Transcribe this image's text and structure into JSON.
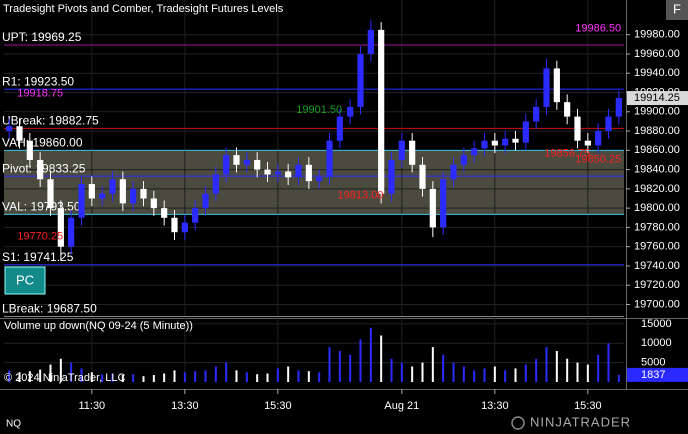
{
  "chart_data": {
    "type": "candlestick",
    "title": "Tradesight Pivots and Comber, Tradesight Futures Levels",
    "symbol": "NQ",
    "copyright": "© 2024 NinjaTrader, LLC",
    "button": "PC",
    "corner_button": "F",
    "logo": "NINJATRADER",
    "categories": [
      null,
      null,
      null,
      null,
      null,
      null,
      null,
      null,
      "11:30",
      null,
      null,
      null,
      null,
      null,
      null,
      null,
      null,
      "13:30",
      null,
      null,
      null,
      null,
      null,
      null,
      null,
      null,
      "15:30",
      null,
      null,
      null,
      null,
      null,
      null,
      null,
      null,
      null,
      null,
      null,
      "Aug 21",
      null,
      null,
      null,
      null,
      null,
      null,
      null,
      null,
      "13:30",
      null,
      null,
      null,
      null,
      null,
      null,
      null,
      null,
      "15:30",
      null,
      null,
      null
    ],
    "open": [
      19880,
      19885,
      19870,
      19850,
      19830,
      19800,
      19760,
      19790,
      19825,
      19810,
      19815,
      19830,
      19805,
      19820,
      19810,
      19800,
      19790,
      19775,
      19785,
      19800,
      19815,
      19835,
      19855,
      19845,
      19850,
      19840,
      19835,
      19838,
      19832,
      19845,
      19828,
      19832,
      19870,
      19895,
      19905,
      19960,
      19985,
      19815,
      19850,
      19870,
      19845,
      19820,
      19780,
      19830,
      19845,
      19855,
      19862,
      19870,
      19865,
      19872,
      19868,
      19890,
      19905,
      19945,
      19910,
      19895,
      19870,
      19865,
      19880,
      19895
    ],
    "high": [
      19893,
      19893,
      19878,
      19858,
      19838,
      19808,
      19798,
      19833,
      19833,
      19823,
      19838,
      19838,
      19828,
      19828,
      19818,
      19808,
      19798,
      19793,
      19808,
      19823,
      19843,
      19863,
      19863,
      19858,
      19858,
      19848,
      19846,
      19846,
      19853,
      19853,
      19840,
      19878,
      19903,
      19913,
      19968,
      19995,
      19993,
      19858,
      19878,
      19878,
      19853,
      19828,
      19838,
      19853,
      19863,
      19870,
      19878,
      19878,
      19880,
      19880,
      19898,
      19913,
      19955,
      19953,
      19918,
      19903,
      19878,
      19888,
      19903,
      19922
    ],
    "low": [
      19872,
      19862,
      19842,
      19822,
      19792,
      19745,
      19752,
      19782,
      19802,
      19802,
      19807,
      19797,
      19797,
      19802,
      19792,
      19782,
      19767,
      19767,
      19777,
      19792,
      19807,
      19827,
      19837,
      19837,
      19832,
      19827,
      19827,
      19824,
      19824,
      19820,
      19820,
      19824,
      19862,
      19887,
      19897,
      19952,
      19805,
      19807,
      19842,
      19837,
      19812,
      19770,
      19772,
      19822,
      19837,
      19847,
      19854,
      19857,
      19857,
      19860,
      19860,
      19882,
      19897,
      19902,
      19887,
      19862,
      19857,
      19857,
      19872,
      19887
    ],
    "close": [
      19885,
      19870,
      19850,
      19830,
      19800,
      19760,
      19790,
      19825,
      19810,
      19815,
      19830,
      19805,
      19820,
      19810,
      19800,
      19790,
      19775,
      19785,
      19800,
      19815,
      19835,
      19855,
      19845,
      19850,
      19840,
      19835,
      19838,
      19832,
      19845,
      19828,
      19832,
      19870,
      19895,
      19905,
      19960,
      19985,
      19815,
      19850,
      19870,
      19845,
      19820,
      19780,
      19830,
      19845,
      19855,
      19862,
      19870,
      19865,
      19872,
      19868,
      19890,
      19905,
      19945,
      19910,
      19895,
      19870,
      19865,
      19880,
      19895,
      19914.25
    ],
    "up_color": "#2b2bff",
    "down_color": "#ffffff",
    "ylim": [
      19686,
      20016
    ],
    "yticks": [
      {
        "value": 19700,
        "label": "19700.00"
      },
      {
        "value": 19720,
        "label": "19720.00"
      },
      {
        "value": 19740,
        "label": "19740.00"
      },
      {
        "value": 19760,
        "label": "19760.00"
      },
      {
        "value": 19780,
        "label": "19780.00"
      },
      {
        "value": 19800,
        "label": "19800.00"
      },
      {
        "value": 19820,
        "label": "19820.00"
      },
      {
        "value": 19840,
        "label": "19840.00"
      },
      {
        "value": 19860,
        "label": "19860.00"
      },
      {
        "value": 19880,
        "label": "19880.00"
      },
      {
        "value": 19900,
        "label": "19900.00"
      },
      {
        "value": 19920,
        "label": "19920.00"
      },
      {
        "value": 19940,
        "label": "19940.00"
      },
      {
        "value": 19960,
        "label": "19960.00"
      },
      {
        "value": 19980,
        "label": "19980.00"
      }
    ],
    "last_price": {
      "value": 19914.25,
      "label": "19914.25"
    },
    "levels": [
      {
        "label": "UPT: 19969.25",
        "value": 19969.25,
        "color": "#9a1a9a"
      },
      {
        "label": "R1: 19923.50",
        "value": 19923.5,
        "color": "#2a2aff"
      },
      {
        "label": "UBreak: 19882.75",
        "value": 19882.75,
        "color": "#d01010"
      },
      {
        "label": "VAH: 19860.00",
        "value": 19860,
        "color": "#3cc8e6"
      },
      {
        "label": "Pivot: 19833.25",
        "value": 19833.25,
        "color": "#2a2aff"
      },
      {
        "label": "VAL: 19793.50",
        "value": 19793.5,
        "color": "#3cc8e6"
      },
      {
        "label": "S1: 19741.25",
        "value": 19741.25,
        "color": "#2a2aff"
      },
      {
        "label": "LBreak: 19687.50",
        "value": 19687.5,
        "color": "#888888"
      }
    ],
    "annotations": [
      {
        "value": 19918.75,
        "label": "19918.75",
        "x": 3,
        "color": "#ff33ff"
      },
      {
        "value": 19770.25,
        "label": "19770.25",
        "x": 3,
        "color": "#ff2020"
      },
      {
        "value": 19901.5,
        "label": "19901.50",
        "x": 30,
        "color": "#1aa01a"
      },
      {
        "value": 19813,
        "label": "19813.00",
        "x": 34,
        "color": "#ff2020"
      },
      {
        "value": 19856.75,
        "label": "19856.75",
        "x": 54,
        "color": "#ff2020"
      },
      {
        "value": 19850.25,
        "label": "19850.25",
        "x": 57,
        "color": "#ff2020"
      },
      {
        "value": 19986.5,
        "label": "19986.50",
        "x": 57,
        "color": "#ff33ff"
      }
    ],
    "volume": {
      "title": "Volume up down(NQ 09-24 (5 Minute))",
      "values": [
        3000,
        2500,
        2800,
        3200,
        4500,
        6000,
        5000,
        3500,
        2500,
        2000,
        2200,
        1800,
        2000,
        1500,
        1800,
        2200,
        3000,
        2500,
        2800,
        3000,
        4000,
        5000,
        3000,
        2500,
        2000,
        2200,
        3500,
        4000,
        3000,
        2800,
        2500,
        9000,
        8000,
        7000,
        11000,
        14000,
        12000,
        6000,
        5000,
        4000,
        5000,
        9000,
        7000,
        5000,
        4000,
        3000,
        3500,
        4000,
        3000,
        3500,
        4500,
        6000,
        9000,
        8000,
        6000,
        5000,
        4500,
        7000,
        10000,
        1837
      ],
      "ylim": [
        0,
        16000
      ],
      "yticks": [
        5000,
        10000,
        15000
      ]
    }
  }
}
